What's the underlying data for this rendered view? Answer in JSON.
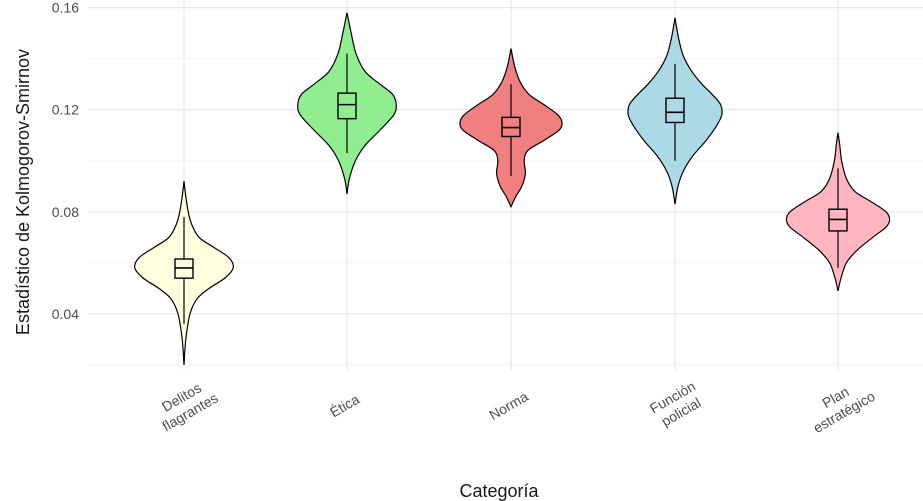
{
  "chart_data": {
    "type": "violin",
    "title": "",
    "xlabel": "Categoría",
    "ylabel": "Estadístico de Kolmogorov-Smirnov",
    "ylim": [
      0.018,
      0.163
    ],
    "yticks": [
      0.04,
      0.08,
      0.12,
      0.16
    ],
    "ytick_labels": [
      "0.04",
      "0.08",
      "0.12",
      "0.16"
    ],
    "grid": true,
    "legend": "none",
    "categories": [
      {
        "lines": [
          "Delitos",
          "flagrantes"
        ],
        "color": "#ffffe0",
        "min": 0.02,
        "max": 0.092,
        "q1": 0.054,
        "median": 0.058,
        "q3": 0.0615,
        "whisker_low": 0.036,
        "whisker_high": 0.078,
        "density": [
          [
            0.02,
            0.0
          ],
          [
            0.03,
            0.03
          ],
          [
            0.04,
            0.1
          ],
          [
            0.046,
            0.22
          ],
          [
            0.05,
            0.42
          ],
          [
            0.054,
            0.68
          ],
          [
            0.058,
            0.82
          ],
          [
            0.062,
            0.75
          ],
          [
            0.066,
            0.5
          ],
          [
            0.07,
            0.25
          ],
          [
            0.075,
            0.13
          ],
          [
            0.08,
            0.07
          ],
          [
            0.086,
            0.03
          ],
          [
            0.092,
            0.0
          ]
        ]
      },
      {
        "lines": [
          "Ética"
        ],
        "color": "#90ee90",
        "min": 0.087,
        "max": 0.158,
        "q1": 0.1165,
        "median": 0.122,
        "q3": 0.1265,
        "whisker_low": 0.103,
        "whisker_high": 0.142,
        "density": [
          [
            0.087,
            0.0
          ],
          [
            0.093,
            0.04
          ],
          [
            0.1,
            0.14
          ],
          [
            0.106,
            0.3
          ],
          [
            0.112,
            0.55
          ],
          [
            0.118,
            0.78
          ],
          [
            0.122,
            0.82
          ],
          [
            0.126,
            0.76
          ],
          [
            0.13,
            0.55
          ],
          [
            0.135,
            0.3
          ],
          [
            0.142,
            0.15
          ],
          [
            0.15,
            0.07
          ],
          [
            0.158,
            0.0
          ]
        ]
      },
      {
        "lines": [
          "Norma"
        ],
        "color": "#f08080",
        "min": 0.082,
        "max": 0.144,
        "q1": 0.1095,
        "median": 0.113,
        "q3": 0.117,
        "whisker_low": 0.094,
        "whisker_high": 0.13,
        "density": [
          [
            0.082,
            0.0
          ],
          [
            0.086,
            0.08
          ],
          [
            0.09,
            0.18
          ],
          [
            0.095,
            0.24
          ],
          [
            0.1,
            0.22
          ],
          [
            0.104,
            0.28
          ],
          [
            0.108,
            0.55
          ],
          [
            0.112,
            0.8
          ],
          [
            0.115,
            0.85
          ],
          [
            0.118,
            0.78
          ],
          [
            0.122,
            0.55
          ],
          [
            0.126,
            0.3
          ],
          [
            0.131,
            0.15
          ],
          [
            0.137,
            0.06
          ],
          [
            0.144,
            0.0
          ]
        ]
      },
      {
        "lines": [
          "Función",
          "policial"
        ],
        "color": "#add8e6",
        "min": 0.083,
        "max": 0.156,
        "q1": 0.115,
        "median": 0.119,
        "q3": 0.1245,
        "whisker_low": 0.1,
        "whisker_high": 0.138,
        "density": [
          [
            0.083,
            0.0
          ],
          [
            0.09,
            0.05
          ],
          [
            0.096,
            0.14
          ],
          [
            0.102,
            0.3
          ],
          [
            0.108,
            0.52
          ],
          [
            0.114,
            0.7
          ],
          [
            0.118,
            0.78
          ],
          [
            0.122,
            0.76
          ],
          [
            0.126,
            0.62
          ],
          [
            0.13,
            0.45
          ],
          [
            0.135,
            0.28
          ],
          [
            0.141,
            0.14
          ],
          [
            0.148,
            0.06
          ],
          [
            0.156,
            0.0
          ]
        ]
      },
      {
        "lines": [
          "Plan",
          "estratégico"
        ],
        "color": "#ffb6c1",
        "min": 0.049,
        "max": 0.111,
        "q1": 0.0725,
        "median": 0.077,
        "q3": 0.081,
        "whisker_low": 0.058,
        "whisker_high": 0.097,
        "density": [
          [
            0.049,
            0.0
          ],
          [
            0.054,
            0.05
          ],
          [
            0.06,
            0.14
          ],
          [
            0.065,
            0.32
          ],
          [
            0.07,
            0.58
          ],
          [
            0.074,
            0.8
          ],
          [
            0.077,
            0.86
          ],
          [
            0.08,
            0.8
          ],
          [
            0.084,
            0.55
          ],
          [
            0.088,
            0.28
          ],
          [
            0.093,
            0.14
          ],
          [
            0.1,
            0.06
          ],
          [
            0.106,
            0.03
          ],
          [
            0.111,
            0.0
          ]
        ]
      }
    ]
  }
}
